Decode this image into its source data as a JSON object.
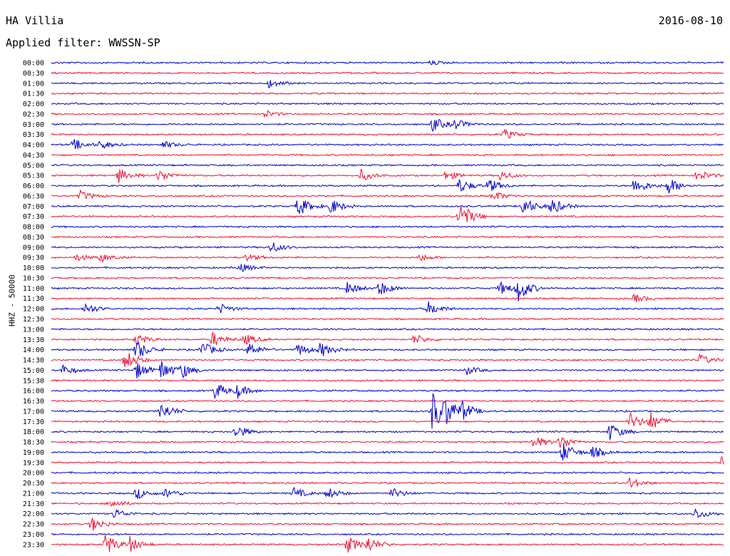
{
  "header": {
    "station": "HA Villia",
    "date": "2016-08-10",
    "filter": "Applied filter: WWSSN-SP"
  },
  "axis": {
    "ylabel": "HHZ - 50000"
  },
  "colors": {
    "even_row": "#0000cc",
    "odd_row": "#ee1133"
  },
  "chart_data": {
    "type": "line",
    "title": "",
    "subtitle": "",
    "ylabel": "HHZ - 50000",
    "row_interval_minutes": 30,
    "row_labels": [
      "00:00",
      "00:30",
      "01:00",
      "01:30",
      "02:00",
      "02:30",
      "03:00",
      "03:30",
      "04:00",
      "04:30",
      "05:00",
      "05:30",
      "06:00",
      "06:30",
      "07:00",
      "07:30",
      "08:00",
      "08:30",
      "09:00",
      "09:30",
      "10:00",
      "10:30",
      "11:00",
      "11:30",
      "12:00",
      "12:30",
      "13:00",
      "13:30",
      "14:00",
      "14:30",
      "15:00",
      "15:30",
      "16:00",
      "16:30",
      "17:00",
      "17:30",
      "18:00",
      "18:30",
      "19:00",
      "19:30",
      "20:00",
      "20:30",
      "21:00",
      "21:30",
      "22:00",
      "22:30",
      "23:00",
      "23:30"
    ],
    "x_range_minutes": [
      0,
      30
    ],
    "bursts": [
      {
        "row": 0,
        "minute": 16.9,
        "amp": 3
      },
      {
        "row": 2,
        "minute": 9.7,
        "amp": 6
      },
      {
        "row": 5,
        "minute": 9.5,
        "amp": 5
      },
      {
        "row": 6,
        "minute": 17.0,
        "amp": 10
      },
      {
        "row": 6,
        "minute": 18.0,
        "amp": 7
      },
      {
        "row": 7,
        "minute": 20.2,
        "amp": 7
      },
      {
        "row": 8,
        "minute": 1.0,
        "amp": 8
      },
      {
        "row": 8,
        "minute": 2.2,
        "amp": 6
      },
      {
        "row": 8,
        "minute": 5.0,
        "amp": 5
      },
      {
        "row": 11,
        "minute": 3.0,
        "amp": 10
      },
      {
        "row": 11,
        "minute": 4.8,
        "amp": 9
      },
      {
        "row": 11,
        "minute": 13.8,
        "amp": 8
      },
      {
        "row": 11,
        "minute": 17.6,
        "amp": 7
      },
      {
        "row": 11,
        "minute": 20.0,
        "amp": 7
      },
      {
        "row": 11,
        "minute": 28.8,
        "amp": 8
      },
      {
        "row": 12,
        "minute": 18.2,
        "amp": 10
      },
      {
        "row": 12,
        "minute": 19.5,
        "amp": 10
      },
      {
        "row": 12,
        "minute": 26.0,
        "amp": 12
      },
      {
        "row": 12,
        "minute": 27.5,
        "amp": 12
      },
      {
        "row": 13,
        "minute": 1.3,
        "amp": 7
      },
      {
        "row": 13,
        "minute": 19.7,
        "amp": 7
      },
      {
        "row": 14,
        "minute": 11.0,
        "amp": 14
      },
      {
        "row": 14,
        "minute": 12.4,
        "amp": 12
      },
      {
        "row": 14,
        "minute": 21.0,
        "amp": 14
      },
      {
        "row": 14,
        "minute": 22.3,
        "amp": 12
      },
      {
        "row": 15,
        "minute": 18.2,
        "amp": 22
      },
      {
        "row": 18,
        "minute": 9.8,
        "amp": 8
      },
      {
        "row": 19,
        "minute": 1.1,
        "amp": 5
      },
      {
        "row": 19,
        "minute": 2.2,
        "amp": 6
      },
      {
        "row": 19,
        "minute": 8.7,
        "amp": 5
      },
      {
        "row": 19,
        "minute": 16.4,
        "amp": 5
      },
      {
        "row": 20,
        "minute": 8.4,
        "amp": 6
      },
      {
        "row": 22,
        "minute": 13.2,
        "amp": 9
      },
      {
        "row": 22,
        "minute": 14.6,
        "amp": 11
      },
      {
        "row": 22,
        "minute": 20.0,
        "amp": 9
      },
      {
        "row": 22,
        "minute": 20.8,
        "amp": 18
      },
      {
        "row": 23,
        "minute": 26.0,
        "amp": 6
      },
      {
        "row": 24,
        "minute": 1.5,
        "amp": 8
      },
      {
        "row": 24,
        "minute": 7.5,
        "amp": 7
      },
      {
        "row": 24,
        "minute": 16.8,
        "amp": 10
      },
      {
        "row": 27,
        "minute": 3.8,
        "amp": 8
      },
      {
        "row": 27,
        "minute": 7.2,
        "amp": 10
      },
      {
        "row": 27,
        "minute": 8.6,
        "amp": 8
      },
      {
        "row": 27,
        "minute": 16.2,
        "amp": 7
      },
      {
        "row": 28,
        "minute": 3.8,
        "amp": 14
      },
      {
        "row": 28,
        "minute": 6.7,
        "amp": 12
      },
      {
        "row": 28,
        "minute": 8.8,
        "amp": 10
      },
      {
        "row": 28,
        "minute": 11.0,
        "amp": 9
      },
      {
        "row": 28,
        "minute": 12.0,
        "amp": 10
      },
      {
        "row": 29,
        "minute": 3.3,
        "amp": 14
      },
      {
        "row": 29,
        "minute": 28.9,
        "amp": 8
      },
      {
        "row": 30,
        "minute": 0.5,
        "amp": 7
      },
      {
        "row": 30,
        "minute": 3.8,
        "amp": 12
      },
      {
        "row": 30,
        "minute": 4.9,
        "amp": 14
      },
      {
        "row": 30,
        "minute": 5.8,
        "amp": 10
      },
      {
        "row": 30,
        "minute": 18.5,
        "amp": 6
      },
      {
        "row": 32,
        "minute": 7.3,
        "amp": 12
      },
      {
        "row": 32,
        "minute": 8.3,
        "amp": 9
      },
      {
        "row": 34,
        "minute": 4.9,
        "amp": 12
      },
      {
        "row": 34,
        "minute": 17.0,
        "amp": 30
      },
      {
        "row": 34,
        "minute": 17.6,
        "amp": 14
      },
      {
        "row": 34,
        "minute": 18.3,
        "amp": 12
      },
      {
        "row": 35,
        "minute": 25.8,
        "amp": 12
      },
      {
        "row": 35,
        "minute": 26.7,
        "amp": 12
      },
      {
        "row": 36,
        "minute": 8.2,
        "amp": 10
      },
      {
        "row": 36,
        "minute": 24.9,
        "amp": 12
      },
      {
        "row": 37,
        "minute": 21.5,
        "amp": 9
      },
      {
        "row": 37,
        "minute": 22.7,
        "amp": 10
      },
      {
        "row": 38,
        "minute": 22.8,
        "amp": 14
      },
      {
        "row": 38,
        "minute": 24.1,
        "amp": 9
      },
      {
        "row": 39,
        "minute": 29.9,
        "amp": 8
      },
      {
        "row": 41,
        "minute": 25.8,
        "amp": 8
      },
      {
        "row": 42,
        "minute": 3.8,
        "amp": 8
      },
      {
        "row": 42,
        "minute": 5.1,
        "amp": 7
      },
      {
        "row": 42,
        "minute": 10.8,
        "amp": 8
      },
      {
        "row": 42,
        "minute": 12.3,
        "amp": 8
      },
      {
        "row": 42,
        "minute": 15.2,
        "amp": 7
      },
      {
        "row": 43,
        "minute": 2.6,
        "amp": 7
      },
      {
        "row": 44,
        "minute": 2.8,
        "amp": 7
      },
      {
        "row": 44,
        "minute": 28.7,
        "amp": 8
      },
      {
        "row": 45,
        "minute": 1.8,
        "amp": 10
      },
      {
        "row": 47,
        "minute": 2.4,
        "amp": 16
      },
      {
        "row": 47,
        "minute": 3.5,
        "amp": 10
      },
      {
        "row": 47,
        "minute": 13.2,
        "amp": 12
      },
      {
        "row": 47,
        "minute": 14.1,
        "amp": 10
      }
    ]
  }
}
